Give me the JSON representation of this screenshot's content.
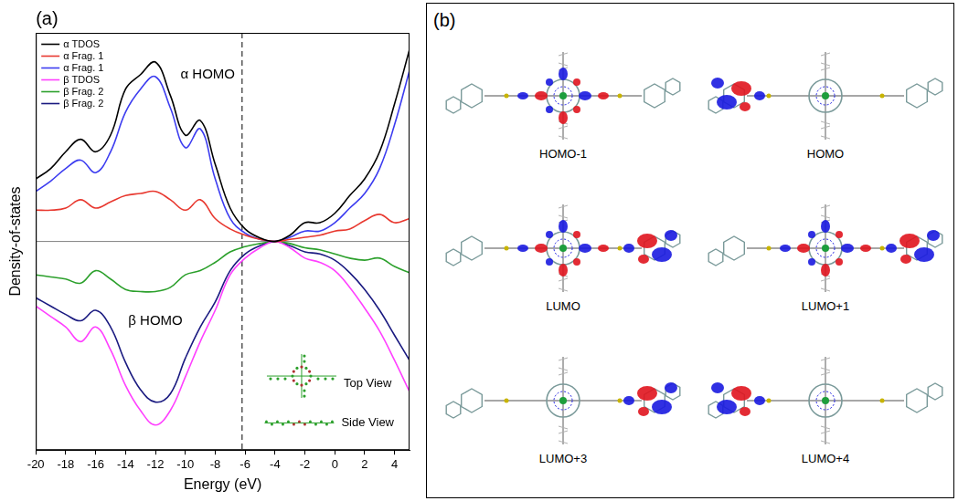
{
  "chart_data": {
    "type": "line",
    "panel_label": "(a)",
    "x_label": "Energy (eV)",
    "y_label": "Density-of-states",
    "x": [
      -20,
      -19,
      -18,
      -17,
      -16,
      -15,
      -14,
      -13,
      -12,
      -11,
      -10,
      -9,
      -8,
      -7,
      -6,
      -5,
      -4,
      -3,
      -2,
      -1,
      0,
      1,
      2,
      3,
      4,
      5
    ],
    "series": [
      {
        "name": "α TDOS",
        "color": "#000000",
        "line_style": "solid",
        "values": [
          3.0,
          3.5,
          4.3,
          4.9,
          4.3,
          5.1,
          7.3,
          8.0,
          8.6,
          7.0,
          5.1,
          5.8,
          3.7,
          1.6,
          0.6,
          0.17,
          0,
          0.3,
          0.9,
          0.9,
          1.35,
          2.2,
          3.0,
          4.3,
          6.6,
          9.2
        ]
      },
      {
        "name": "α Frag. 1",
        "color": "#e8382f",
        "line_style": "solid",
        "values": [
          1.5,
          1.5,
          1.6,
          2.0,
          1.6,
          1.9,
          2.2,
          2.3,
          2.4,
          2.0,
          1.5,
          2.0,
          1.1,
          0.6,
          0.3,
          0.1,
          0,
          0.1,
          0.2,
          0.3,
          0.5,
          0.6,
          1.0,
          1.3,
          0.9,
          1.1
        ]
      },
      {
        "name": "α Frag. 1",
        "color": "#3c3cf0",
        "line_style": "solid",
        "values": [
          2.4,
          2.9,
          3.5,
          3.9,
          3.3,
          4.3,
          6.2,
          7.3,
          7.9,
          6.4,
          4.5,
          5.4,
          3.0,
          1.1,
          0.4,
          0.1,
          0,
          0.2,
          0.5,
          0.5,
          0.9,
          1.6,
          2.3,
          3.5,
          5.6,
          8.2
        ]
      },
      {
        "name": "β TDOS",
        "color": "#ff40ff",
        "line_style": "solid",
        "values": [
          -3.1,
          -3.6,
          -4.1,
          -4.8,
          -4.1,
          -5.2,
          -6.9,
          -8.1,
          -8.8,
          -8.1,
          -6.5,
          -4.8,
          -3.3,
          -1.6,
          -0.8,
          -0.3,
          0,
          -0.3,
          -0.8,
          -1.0,
          -1.4,
          -2.2,
          -3.2,
          -4.3,
          -5.7,
          -7.2
        ]
      },
      {
        "name": "β Frag. 2",
        "color": "#2ca02c",
        "line_style": "solid",
        "values": [
          -1.6,
          -1.7,
          -1.8,
          -2.0,
          -1.4,
          -1.8,
          -2.3,
          -2.4,
          -2.4,
          -2.2,
          -1.6,
          -1.4,
          -1.0,
          -0.5,
          -0.25,
          -0.1,
          0,
          -0.1,
          -0.3,
          -0.4,
          -0.6,
          -0.8,
          -0.9,
          -0.8,
          -1.2,
          -1.5
        ]
      },
      {
        "name": "β Frag. 2",
        "color": "#1a1a80",
        "line_style": "solid",
        "values": [
          -2.7,
          -3.1,
          -3.5,
          -3.8,
          -3.3,
          -4.1,
          -5.8,
          -7.1,
          -7.7,
          -7.3,
          -5.6,
          -4.1,
          -2.9,
          -1.4,
          -0.6,
          -0.2,
          0,
          -0.2,
          -0.5,
          -0.6,
          -0.9,
          -1.5,
          -2.3,
          -3.3,
          -4.5,
          -5.7
        ]
      }
    ],
    "xlim": [
      -20,
      5
    ],
    "xticks": [
      -20,
      -18,
      -16,
      -14,
      -12,
      -10,
      -8,
      -6,
      -4,
      -2,
      0,
      2,
      4
    ],
    "ylim": [
      -10,
      10
    ],
    "tick_labels": "x",
    "grid": false,
    "legend": "upper left",
    "reference_lines": [
      {
        "x": -6.2,
        "line_style": "dashed",
        "color": "#000000"
      },
      {
        "y": 0,
        "line_style": "solid",
        "color": "#808080"
      }
    ],
    "annotations": [
      {
        "text": "α HOMO",
        "x": -8.5,
        "y": 8.0
      },
      {
        "text": "β HOMO",
        "x": -12,
        "y": -3.8
      }
    ],
    "inset": [
      {
        "label": "Top View",
        "x": 2.2,
        "y": -6.8
      },
      {
        "label": "Side View",
        "x": 2.2,
        "y": -8.7
      }
    ]
  },
  "orbital_panel": {
    "label": "(b)",
    "orbitals": [
      "HOMO-1",
      "HOMO",
      "LUMO",
      "LUMO+1",
      "LUMO+3",
      "LUMO+4"
    ]
  }
}
